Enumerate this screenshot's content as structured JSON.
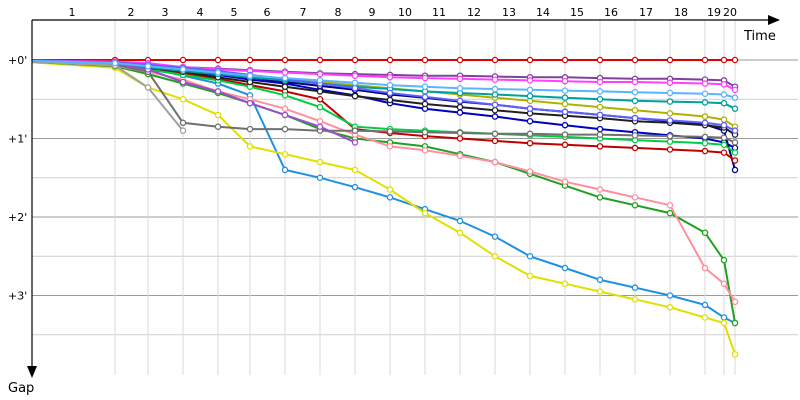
{
  "chart_data": {
    "type": "line",
    "x_axis_title": "Time",
    "y_axis_title": "Gap",
    "lap_labels": [
      "1",
      "2",
      "3",
      "4",
      "5",
      "6",
      "7",
      "8",
      "9",
      "10",
      "11",
      "12",
      "13",
      "14",
      "15",
      "16",
      "17",
      "18",
      "19",
      "20"
    ],
    "y_tick_labels": [
      "+0'",
      "+1'",
      "+2'",
      "+3'"
    ],
    "y_tick_values": [
      0,
      1,
      2,
      3
    ],
    "y_range": [
      0,
      3.95
    ],
    "grid": true,
    "series": [
      {
        "color": "#e00000",
        "values": [
          0.0,
          0.0,
          0.0,
          0.0,
          0.0,
          0.0,
          0.0,
          0.0,
          0.0,
          0.0,
          0.0,
          0.0,
          0.0,
          0.0,
          0.0,
          0.0,
          0.0,
          0.0,
          0.0,
          0.0
        ]
      },
      {
        "color": "#8040a0",
        "values": [
          0.03,
          0.07,
          0.09,
          0.11,
          0.13,
          0.15,
          0.17,
          0.18,
          0.19,
          0.2,
          0.2,
          0.21,
          0.22,
          0.22,
          0.23,
          0.24,
          0.24,
          0.25,
          0.26,
          0.34
        ]
      },
      {
        "color": "#ff40ff",
        "values": [
          0.02,
          0.04,
          0.09,
          0.12,
          0.14,
          0.16,
          0.18,
          0.2,
          0.22,
          0.23,
          0.24,
          0.25,
          0.26,
          0.27,
          0.28,
          0.28,
          0.29,
          0.3,
          0.31,
          0.38
        ]
      },
      {
        "color": "#2090e0",
        "values": [
          0.05,
          0.1,
          0.2,
          0.3,
          0.45,
          1.4,
          1.5,
          1.62,
          1.75,
          1.9,
          2.05,
          2.25,
          2.5,
          2.65,
          2.8,
          2.9,
          3.0,
          3.12,
          3.28,
          3.35
        ]
      },
      {
        "color": "#e0e000",
        "values": [
          0.1,
          0.35,
          0.5,
          0.7,
          1.1,
          1.2,
          1.3,
          1.4,
          1.65,
          1.95,
          2.2,
          2.5,
          2.75,
          2.85,
          2.95,
          3.05,
          3.15,
          3.28,
          3.35,
          3.75
        ]
      },
      {
        "color": "#20a020",
        "values": [
          0.08,
          0.18,
          0.3,
          0.42,
          0.55,
          0.7,
          0.88,
          1.0,
          1.05,
          1.1,
          1.2,
          1.3,
          1.45,
          1.6,
          1.75,
          1.85,
          1.95,
          2.2,
          2.55,
          3.35
        ]
      },
      {
        "color": "#ff8fa0",
        "values": [
          0.07,
          0.15,
          0.25,
          0.4,
          0.5,
          0.62,
          0.78,
          0.95,
          1.1,
          1.15,
          1.22,
          1.3,
          1.42,
          1.55,
          1.65,
          1.75,
          1.85,
          2.65,
          2.85,
          3.08
        ]
      },
      {
        "color": "#0000c0",
        "values": [
          0.05,
          0.09,
          0.14,
          0.19,
          0.25,
          0.3,
          0.38,
          0.45,
          0.55,
          0.62,
          0.67,
          0.72,
          0.78,
          0.83,
          0.88,
          0.92,
          0.96,
          1.0,
          1.05,
          1.12
        ]
      },
      {
        "color": "#000080",
        "values": [
          0.04,
          0.08,
          0.13,
          0.18,
          0.22,
          0.28,
          0.33,
          0.38,
          0.44,
          0.48,
          0.53,
          0.57,
          0.62,
          0.66,
          0.7,
          0.74,
          0.78,
          0.82,
          0.9,
          1.4
        ]
      },
      {
        "color": "#c00000",
        "values": [
          0.06,
          0.11,
          0.17,
          0.24,
          0.32,
          0.4,
          0.5,
          0.88,
          0.93,
          0.97,
          1.0,
          1.03,
          1.06,
          1.08,
          1.1,
          1.12,
          1.14,
          1.16,
          1.18,
          1.28
        ]
      },
      {
        "color": "#00cc44",
        "values": [
          0.06,
          0.12,
          0.19,
          0.26,
          0.34,
          0.45,
          0.6,
          0.85,
          0.88,
          0.9,
          0.92,
          0.94,
          0.96,
          0.98,
          1.0,
          1.02,
          1.04,
          1.06,
          1.08,
          1.18
        ]
      },
      {
        "color": "#707070",
        "values": [
          0.06,
          0.15,
          0.8,
          0.85,
          0.88,
          0.88,
          0.9,
          0.9,
          0.91,
          0.92,
          0.93,
          0.94,
          0.94,
          0.95,
          0.95,
          0.96,
          0.97,
          0.98,
          0.99,
          1.05
        ]
      },
      {
        "color": "#202020",
        "values": [
          0.05,
          0.1,
          0.15,
          0.22,
          0.28,
          0.34,
          0.4,
          0.46,
          0.51,
          0.56,
          0.6,
          0.64,
          0.68,
          0.71,
          0.74,
          0.78,
          0.8,
          0.83,
          0.86,
          0.95
        ]
      },
      {
        "color": "#b0b000",
        "values": [
          0.04,
          0.08,
          0.12,
          0.16,
          0.2,
          0.24,
          0.28,
          0.32,
          0.36,
          0.4,
          0.44,
          0.48,
          0.52,
          0.56,
          0.6,
          0.64,
          0.68,
          0.72,
          0.76,
          0.85
        ]
      },
      {
        "color": "#00a0a0",
        "values": [
          0.04,
          0.09,
          0.14,
          0.18,
          0.22,
          0.26,
          0.3,
          0.34,
          0.37,
          0.4,
          0.42,
          0.44,
          0.46,
          0.48,
          0.5,
          0.52,
          0.53,
          0.54,
          0.55,
          0.62
        ]
      },
      {
        "color": "#9b4fd0",
        "values": [
          0.05,
          0.12,
          0.28,
          0.4,
          0.55,
          0.7,
          0.85,
          1.05,
          null,
          null,
          null,
          null,
          null,
          null,
          null,
          null,
          null,
          null,
          null,
          null
        ]
      },
      {
        "color": "#a0a0a0",
        "values": [
          0.07,
          0.35,
          0.9,
          null,
          null,
          null,
          null,
          null,
          null,
          null,
          null,
          null,
          null,
          null,
          null,
          null,
          null,
          null,
          null,
          null
        ]
      },
      {
        "color": "#6060ff",
        "values": [
          0.03,
          0.06,
          0.1,
          0.14,
          0.19,
          0.24,
          0.3,
          0.36,
          0.42,
          0.47,
          0.52,
          0.57,
          0.62,
          0.66,
          0.7,
          0.74,
          0.77,
          0.8,
          0.83,
          0.9
        ]
      },
      {
        "color": "#5ab4ff",
        "values": [
          0.04,
          0.08,
          0.12,
          0.16,
          0.2,
          0.23,
          0.26,
          0.29,
          0.32,
          0.34,
          0.36,
          0.37,
          0.38,
          0.39,
          0.4,
          0.41,
          0.42,
          0.43,
          0.44,
          0.48
        ]
      }
    ]
  }
}
